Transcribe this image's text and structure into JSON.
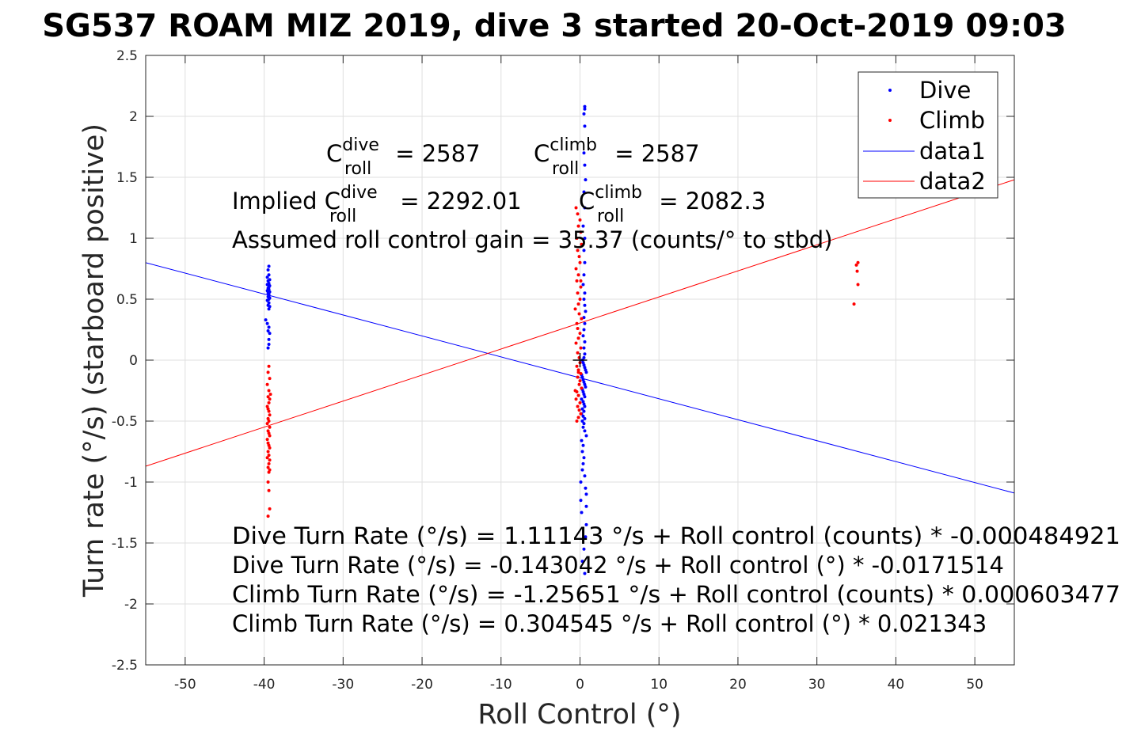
{
  "chart_data": {
    "type": "scatter",
    "title": "SG537 ROAM MIZ 2019, dive 3 started 20-Oct-2019 09:03",
    "xlabel": "Roll Control (°)",
    "ylabel": "Turn rate (°/s) (starboard positive)",
    "xlim": [
      -55,
      55
    ],
    "ylim": [
      -2.5,
      2.5
    ],
    "grid": true,
    "legend_position": "top-right",
    "x_ticks": [
      "-50",
      "-40",
      "-30",
      "-20",
      "-10",
      "0",
      "10",
      "20",
      "30",
      "40",
      "50"
    ],
    "y_ticks": [
      "2.5",
      "2",
      "1.5",
      "1",
      "0.5",
      "0",
      "-0.5",
      "-1",
      "-1.5",
      "-2",
      "-2.5"
    ],
    "legend": [
      "Dive",
      "Climb",
      "data1",
      "data2"
    ],
    "colors": {
      "dive": "#0000ff",
      "climb": "#ff0000",
      "data1": "#0000ff",
      "data2": "#ff0000",
      "marker": "#000000"
    },
    "series": [
      {
        "name": "Dive",
        "style": "points",
        "x": [
          -39.4,
          -39.5,
          -39.4,
          -39.6,
          -39.3,
          -39.5,
          -39.4,
          -39.6,
          -39.3,
          -39.4,
          -39.5,
          -39.4,
          -39.6,
          -39.3,
          -39.5,
          -39.4,
          -39.4,
          -39.5,
          -39.3,
          -39.4,
          -39.6,
          -39.4,
          -39.5,
          -39.3,
          -39.4,
          -39.8,
          -39.6,
          -39.4,
          -39.5,
          -39.3,
          -39.4,
          -39.4,
          -39.5,
          0.6,
          0.6,
          0.5,
          0.6,
          0.5,
          0.6,
          0.7,
          0.5,
          0.6,
          0.4,
          0.6,
          0.5,
          0.6,
          0.5,
          0.4,
          0.6,
          0.5,
          0.6,
          0.7,
          0.5,
          0.6,
          0.5,
          0.4,
          0.6,
          0.5,
          0.6,
          0.5,
          0.3,
          0.4,
          0.5,
          0.6,
          0.7,
          0.8,
          0.2,
          0.3,
          0.4,
          0.5,
          0.6,
          0.7,
          0.3,
          0.4,
          0.5,
          0.6,
          0.2,
          0.4,
          0.5,
          0.6,
          0.3,
          0.5,
          0.2,
          0.4,
          0.6,
          0.3,
          0.5,
          0.4,
          0.6,
          0.8,
          0.2,
          0.4,
          0.3,
          0.5,
          0.4,
          0.3,
          0.6,
          0.1,
          0.7,
          0.8,
          0.1,
          0.8,
          0.2,
          0.8,
          0.7,
          0.5,
          0.3,
          0.6
        ],
        "y": [
          0.77,
          0.74,
          0.7,
          0.68,
          0.66,
          0.65,
          0.63,
          0.62,
          0.61,
          0.6,
          0.59,
          0.58,
          0.57,
          0.56,
          0.55,
          0.54,
          0.53,
          0.52,
          0.51,
          0.5,
          0.49,
          0.47,
          0.45,
          0.44,
          0.42,
          0.33,
          0.3,
          0.27,
          0.24,
          0.22,
          0.17,
          0.13,
          0.1,
          2.08,
          2.06,
          2.02,
          1.92,
          1.7,
          1.6,
          1.48,
          1.38,
          1.25,
          1.1,
          1.0,
          0.9,
          0.8,
          0.7,
          0.62,
          0.55,
          0.5,
          0.45,
          0.4,
          0.35,
          0.3,
          0.25,
          0.2,
          0.15,
          0.1,
          0.05,
          0.02,
          0.0,
          -0.02,
          -0.04,
          -0.06,
          -0.08,
          -0.1,
          -0.12,
          -0.14,
          -0.16,
          -0.18,
          -0.2,
          -0.22,
          -0.24,
          -0.26,
          -0.28,
          -0.3,
          -0.32,
          -0.34,
          -0.36,
          -0.38,
          -0.4,
          -0.42,
          -0.44,
          -0.46,
          -0.48,
          -0.5,
          -0.52,
          -0.55,
          -0.58,
          -0.62,
          -0.66,
          -0.7,
          -0.75,
          -0.8,
          -0.85,
          -0.9,
          -0.95,
          -1.0,
          -1.05,
          -1.1,
          -1.15,
          -1.2,
          -1.25,
          -1.35,
          -1.45,
          -1.55,
          -1.65,
          -1.75
        ]
      },
      {
        "name": "Climb",
        "style": "points",
        "x": [
          -39.4,
          -39.5,
          -39.3,
          -39.6,
          -39.4,
          -39.2,
          -39.5,
          -39.3,
          -39.4,
          -39.6,
          -39.5,
          -39.4,
          -39.3,
          -39.5,
          -39.4,
          -39.6,
          -39.3,
          -39.5,
          -39.4,
          -39.3,
          -39.6,
          -39.5,
          -39.4,
          -39.3,
          -39.5,
          -39.4,
          -39.6,
          -39.3,
          -39.4,
          -39.5,
          -39.3,
          -39.4,
          -39.5,
          -39.4,
          -39.3,
          -39.5,
          -0.5,
          -0.3,
          0.0,
          -0.2,
          0.1,
          -0.4,
          0.2,
          -0.3,
          -0.1,
          0.0,
          -0.5,
          -0.2,
          -0.4,
          0.1,
          -0.3,
          0.0,
          -0.2,
          -0.6,
          -0.1,
          0.2,
          -0.4,
          -0.3,
          0.0,
          -0.2,
          -0.5,
          0.1,
          -0.3,
          -0.1,
          0.0,
          -0.4,
          -0.2,
          0.1,
          -0.3,
          0.0,
          -0.1,
          0.2,
          -0.4,
          -0.2,
          -0.5,
          0.0,
          -0.3,
          -0.1,
          0.1,
          -0.2,
          -0.4,
          -0.6,
          -0.2,
          0.1,
          35.2,
          35.0,
          35.1,
          35.2,
          34.7
        ],
        "y": [
          -0.05,
          -0.1,
          -0.15,
          -0.2,
          -0.25,
          -0.28,
          -0.3,
          -0.32,
          -0.35,
          -0.38,
          -0.4,
          -0.42,
          -0.45,
          -0.48,
          -0.5,
          -0.52,
          -0.55,
          -0.58,
          -0.6,
          -0.62,
          -0.65,
          -0.68,
          -0.7,
          -0.72,
          -0.75,
          -0.78,
          -0.8,
          -0.82,
          -0.85,
          -0.88,
          -0.9,
          -0.92,
          -1.0,
          -1.07,
          -1.22,
          -1.28,
          1.25,
          1.2,
          1.15,
          1.1,
          1.05,
          1.0,
          0.95,
          0.9,
          0.85,
          0.8,
          0.75,
          0.7,
          0.65,
          0.6,
          0.55,
          0.5,
          0.46,
          0.42,
          0.38,
          0.34,
          0.3,
          0.26,
          0.22,
          0.18,
          0.14,
          0.1,
          0.06,
          0.02,
          -0.02,
          -0.05,
          -0.08,
          -0.11,
          -0.14,
          -0.17,
          -0.2,
          -0.23,
          -0.26,
          -0.29,
          -0.32,
          -0.35,
          -0.38,
          -0.41,
          -0.44,
          -0.47,
          -0.5,
          -0.25,
          -0.1,
          0.65,
          0.8,
          0.78,
          0.73,
          0.62,
          0.46
        ]
      },
      {
        "name": "data1",
        "style": "line",
        "x": [
          -55,
          55
        ],
        "y": [
          0.8,
          -1.09
        ]
      },
      {
        "name": "data2",
        "style": "line",
        "x": [
          -55,
          55
        ],
        "y": [
          -0.87,
          1.48
        ]
      }
    ],
    "marker": {
      "style": "plus",
      "x": 0,
      "y": 0
    },
    "annotations": {
      "c_dive_main": "C",
      "c_dive_sup": "dive",
      "c_dive_sub": "roll",
      "c_dive_val": " = 2587",
      "c_climb_main": "C",
      "c_climb_sup": "climb",
      "c_climb_sub": "roll",
      "c_climb_val": " = 2587",
      "implied_prefix": "Implied C",
      "implied_dive_sup": "dive",
      "implied_dive_sub": "roll",
      "implied_dive_val": " = 2292.01",
      "implied_climb_main": "C",
      "implied_climb_sup": "climb",
      "implied_climb_sub": "roll",
      "implied_climb_val": " = 2082.3",
      "gain": "Assumed roll control gain = 35.37 (counts/° to stbd)",
      "eq1": "Dive Turn Rate (°/s) = 1.11143 °/s + Roll control (counts) * -0.000484921",
      "eq2": "Dive Turn Rate (°/s) = -0.143042 °/s + Roll control (°) * -0.0171514",
      "eq3": "Climb Turn Rate (°/s) = -1.25651 °/s + Roll control (counts) * 0.000603477",
      "eq4": "Climb Turn Rate (°/s) = 0.304545 °/s + Roll control (°) * 0.021343"
    }
  }
}
